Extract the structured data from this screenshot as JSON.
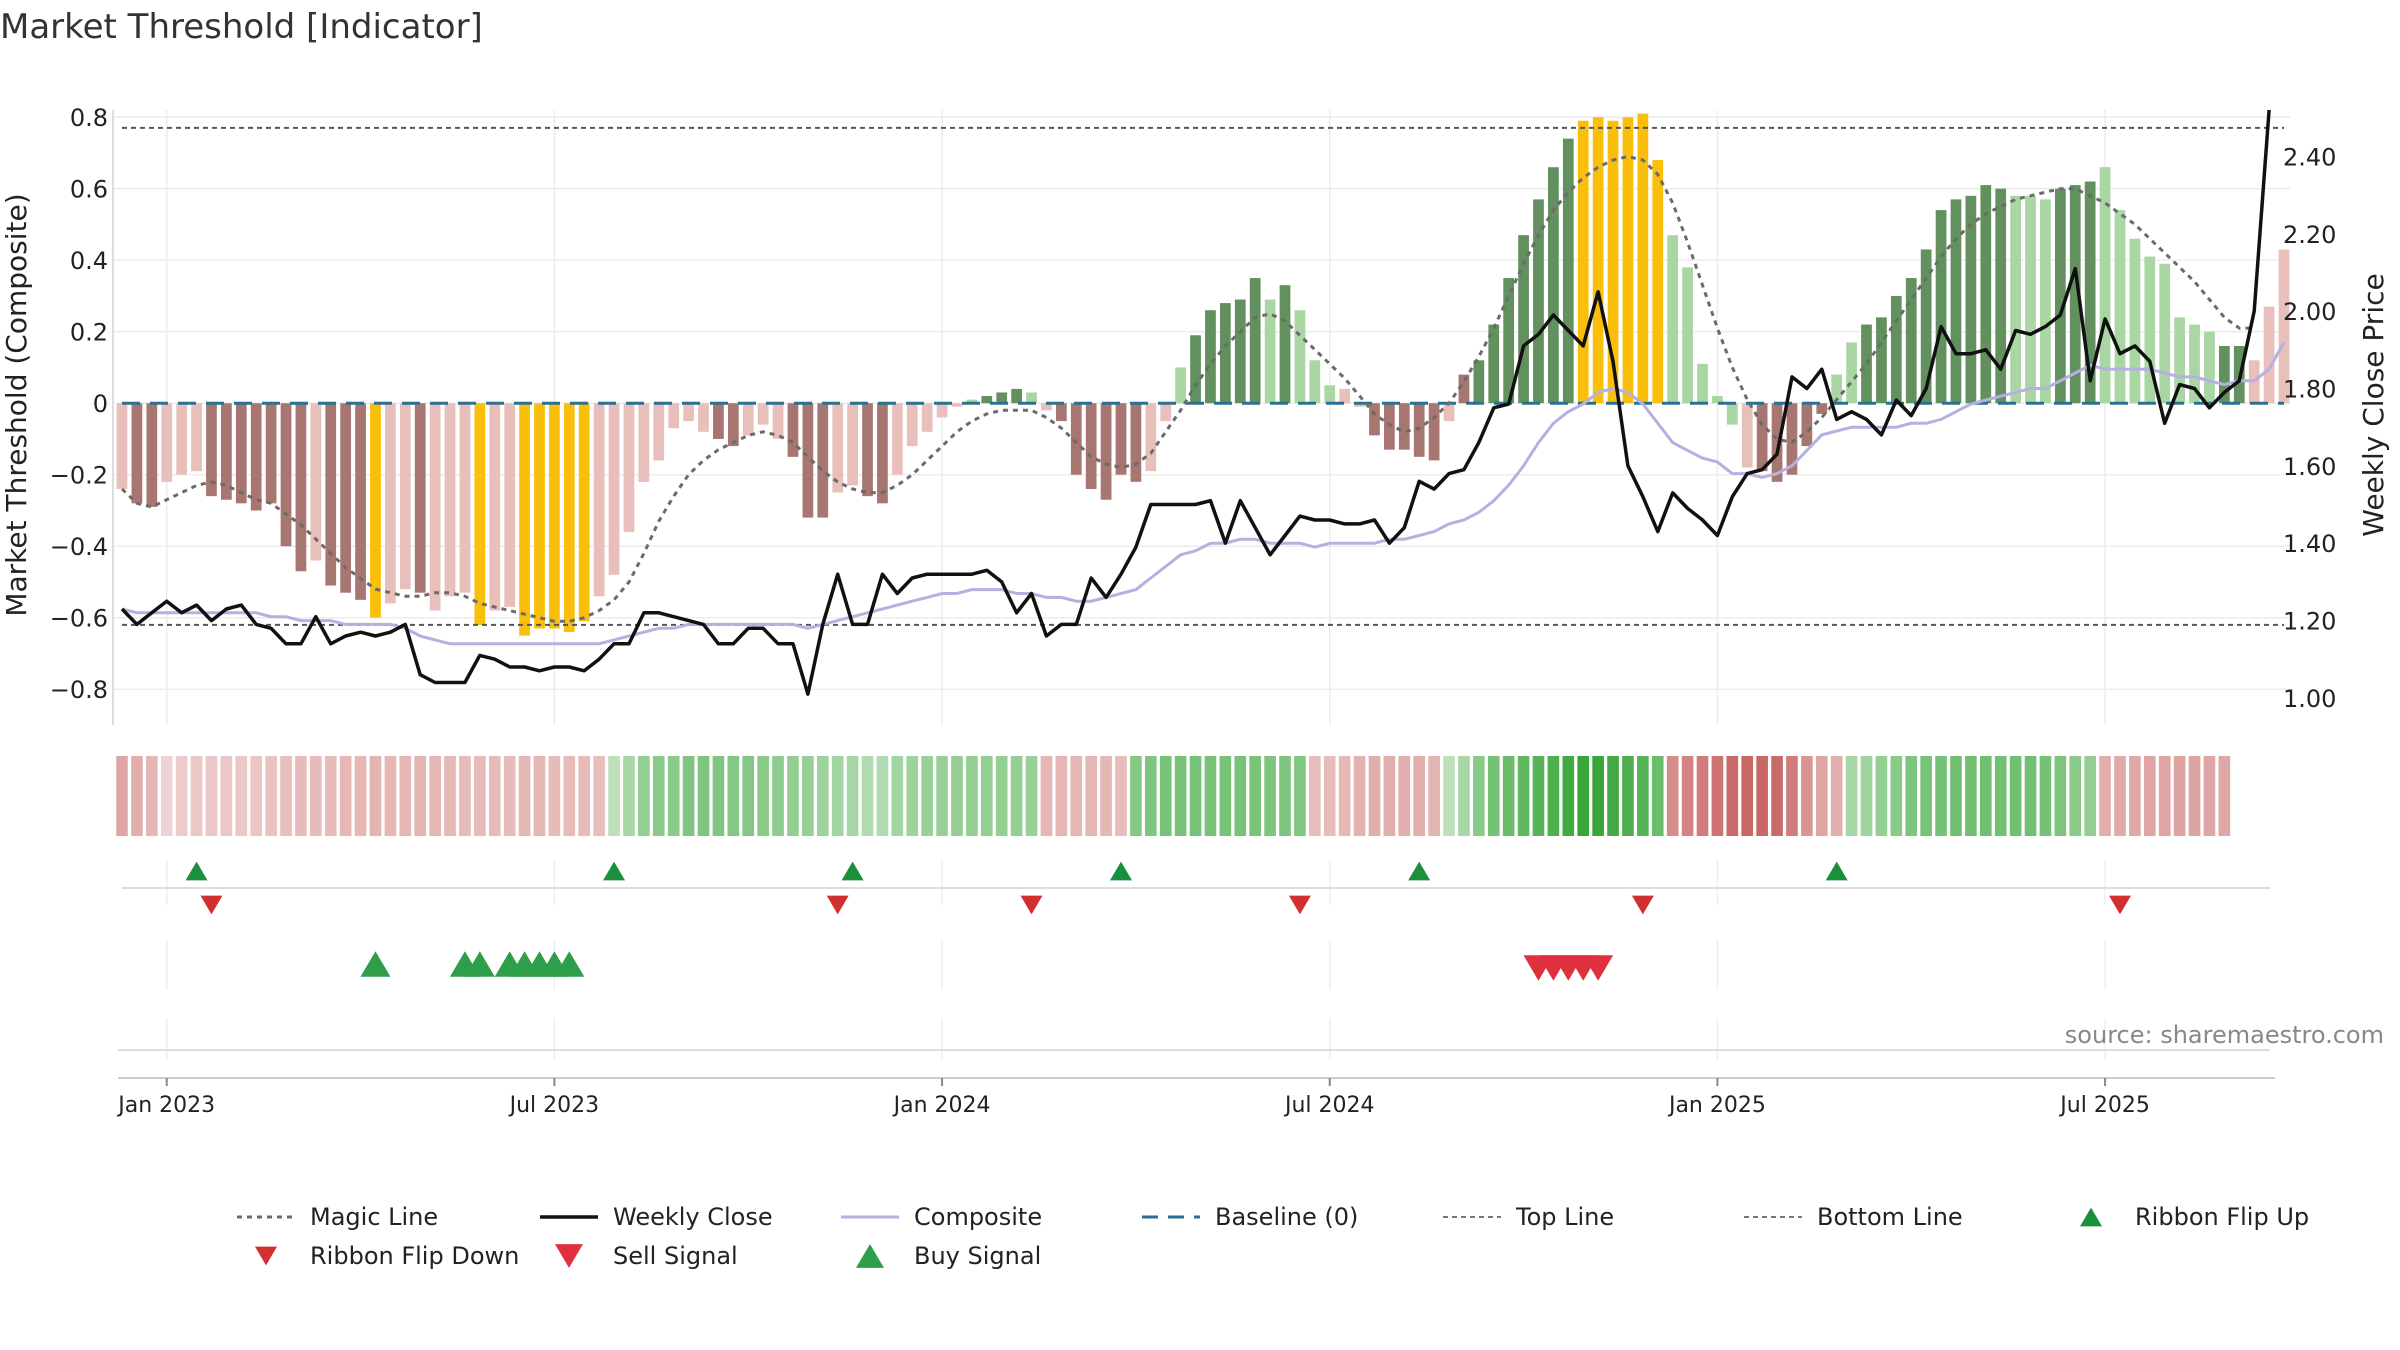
{
  "chart_data": {
    "type": "bar+line",
    "title": "Market Threshold [Indicator]",
    "ylabel_left": "Market Threshold (Composite)",
    "ylabel_right": "Weekly Close Price",
    "source": "source: sharemaestro.com",
    "ylim_left": [
      -0.9,
      0.82
    ],
    "ylim_right": [
      0.93,
      2.52
    ],
    "yticks_left": [
      {
        "v": 0.8,
        "label": "0.8"
      },
      {
        "v": 0.6,
        "label": "0.6"
      },
      {
        "v": 0.4,
        "label": "0.4"
      },
      {
        "v": 0.2,
        "label": "0.2"
      },
      {
        "v": 0,
        "label": "0"
      },
      {
        "v": -0.2,
        "label": "−0.2"
      },
      {
        "v": -0.4,
        "label": "−0.4"
      },
      {
        "v": -0.6,
        "label": "−0.6"
      },
      {
        "v": -0.8,
        "label": "−0.8"
      }
    ],
    "yticks_right": [
      {
        "v": 2.4,
        "label": "2.40"
      },
      {
        "v": 2.2,
        "label": "2.20"
      },
      {
        "v": 2.0,
        "label": "2.00"
      },
      {
        "v": 1.8,
        "label": "1.80"
      },
      {
        "v": 1.6,
        "label": "1.60"
      },
      {
        "v": 1.4,
        "label": "1.40"
      },
      {
        "v": 1.2,
        "label": "1.20"
      },
      {
        "v": 1.0,
        "label": "1.00"
      }
    ],
    "x_ticks": [
      {
        "i": 3,
        "label": "Jan 2023"
      },
      {
        "i": 29,
        "label": "Jul 2023"
      },
      {
        "i": 55,
        "label": "Jan 2024"
      },
      {
        "i": 81,
        "label": "Jul 2024"
      },
      {
        "i": 107,
        "label": "Jan 2025"
      },
      {
        "i": 133,
        "label": "Jul 2025"
      }
    ],
    "top_line": 0.77,
    "bottom_line": -0.62,
    "baseline": 0,
    "composite_bars": [
      -0.24,
      -0.28,
      -0.29,
      -0.22,
      -0.2,
      -0.19,
      -0.26,
      -0.27,
      -0.28,
      -0.3,
      -0.28,
      -0.4,
      -0.47,
      -0.44,
      -0.51,
      -0.53,
      -0.55,
      -0.6,
      -0.56,
      -0.52,
      -0.53,
      -0.58,
      -0.54,
      -0.53,
      -0.62,
      -0.58,
      -0.57,
      -0.65,
      -0.63,
      -0.63,
      -0.64,
      -0.61,
      -0.54,
      -0.48,
      -0.36,
      -0.22,
      -0.16,
      -0.07,
      -0.05,
      -0.08,
      -0.1,
      -0.12,
      -0.09,
      -0.06,
      -0.1,
      -0.15,
      -0.32,
      -0.32,
      -0.25,
      -0.23,
      -0.26,
      -0.28,
      -0.2,
      -0.12,
      -0.08,
      -0.04,
      -0.01,
      0.01,
      0.02,
      0.03,
      0.04,
      0.03,
      -0.02,
      -0.05,
      -0.2,
      -0.24,
      -0.27,
      -0.2,
      -0.22,
      -0.19,
      -0.05,
      0.1,
      0.19,
      0.26,
      0.28,
      0.29,
      0.35,
      0.29,
      0.33,
      0.26,
      0.12,
      0.05,
      0.04,
      -0.01,
      -0.09,
      -0.13,
      -0.13,
      -0.15,
      -0.16,
      -0.05,
      0.08,
      0.12,
      0.22,
      0.35,
      0.47,
      0.57,
      0.66,
      0.74,
      0.79,
      0.8,
      0.79,
      0.8,
      0.81,
      0.68,
      0.47,
      0.38,
      0.11,
      0.02,
      -0.06,
      -0.18,
      -0.19,
      -0.22,
      -0.2,
      -0.12,
      -0.03,
      0.08,
      0.17,
      0.22,
      0.24,
      0.3,
      0.35,
      0.43,
      0.54,
      0.57,
      0.58,
      0.61,
      0.6,
      0.58,
      0.58,
      0.57,
      0.6,
      0.61,
      0.62,
      0.66,
      0.54,
      0.46,
      0.41,
      0.39,
      0.24,
      0.22,
      0.2,
      0.16,
      0.16,
      0.12,
      0.27,
      0.43
    ],
    "bar_states": [
      "ld",
      "dd",
      "dd",
      "ld",
      "ld",
      "ld",
      "dd",
      "dd",
      "dd",
      "dd",
      "dd",
      "dd",
      "dd",
      "ld",
      "dd",
      "dd",
      "dd",
      "y",
      "ld",
      "ld",
      "dd",
      "ld",
      "ld",
      "ld",
      "y",
      "ld",
      "ld",
      "y",
      "y",
      "y",
      "y",
      "y",
      "ld",
      "ld",
      "ld",
      "ld",
      "ld",
      "ld",
      "ld",
      "ld",
      "dd",
      "dd",
      "ld",
      "ld",
      "ld",
      "dd",
      "dd",
      "dd",
      "ld",
      "ld",
      "dd",
      "dd",
      "ld",
      "ld",
      "ld",
      "ld",
      "ld",
      "lg",
      "dg",
      "dg",
      "dg",
      "lg",
      "ld",
      "dd",
      "dd",
      "dd",
      "dd",
      "dd",
      "dd",
      "ld",
      "ld",
      "lg",
      "dg",
      "dg",
      "dg",
      "dg",
      "dg",
      "lg",
      "dg",
      "lg",
      "lg",
      "lg",
      "ld",
      "ld",
      "dd",
      "dd",
      "dd",
      "dd",
      "dd",
      "ld",
      "dd",
      "dg",
      "dg",
      "dg",
      "dg",
      "dg",
      "dg",
      "dg",
      "y",
      "y",
      "y",
      "y",
      "y",
      "y",
      "lg",
      "lg",
      "lg",
      "lg",
      "lg",
      "ld",
      "dd",
      "dd",
      "dd",
      "dd",
      "dd",
      "lg",
      "lg",
      "dg",
      "dg",
      "dg",
      "dg",
      "dg",
      "dg",
      "dg",
      "dg",
      "dg",
      "dg",
      "lg",
      "lg",
      "lg",
      "dg",
      "dg",
      "dg",
      "lg",
      "lg",
      "lg",
      "lg",
      "lg",
      "lg",
      "lg",
      "lg",
      "dg",
      "dg"
    ],
    "magic_line": [
      -0.24,
      -0.28,
      -0.29,
      -0.27,
      -0.25,
      -0.23,
      -0.22,
      -0.23,
      -0.25,
      -0.27,
      -0.28,
      -0.31,
      -0.34,
      -0.38,
      -0.42,
      -0.46,
      -0.49,
      -0.52,
      -0.53,
      -0.54,
      -0.54,
      -0.53,
      -0.53,
      -0.54,
      -0.56,
      -0.57,
      -0.58,
      -0.59,
      -0.6,
      -0.61,
      -0.61,
      -0.6,
      -0.58,
      -0.55,
      -0.5,
      -0.42,
      -0.33,
      -0.26,
      -0.2,
      -0.16,
      -0.13,
      -0.11,
      -0.09,
      -0.08,
      -0.09,
      -0.11,
      -0.15,
      -0.19,
      -0.22,
      -0.24,
      -0.25,
      -0.25,
      -0.23,
      -0.2,
      -0.16,
      -0.12,
      -0.08,
      -0.05,
      -0.03,
      -0.02,
      -0.02,
      -0.02,
      -0.04,
      -0.07,
      -0.11,
      -0.15,
      -0.17,
      -0.18,
      -0.17,
      -0.14,
      -0.08,
      -0.02,
      0.05,
      0.11,
      0.16,
      0.2,
      0.24,
      0.25,
      0.23,
      0.19,
      0.15,
      0.11,
      0.07,
      0.02,
      -0.03,
      -0.06,
      -0.08,
      -0.07,
      -0.04,
      0.0,
      0.06,
      0.13,
      0.21,
      0.3,
      0.39,
      0.47,
      0.54,
      0.59,
      0.63,
      0.66,
      0.68,
      0.69,
      0.68,
      0.64,
      0.56,
      0.45,
      0.33,
      0.21,
      0.1,
      0.01,
      -0.06,
      -0.1,
      -0.11,
      -0.08,
      -0.04,
      0.01,
      0.06,
      0.11,
      0.17,
      0.23,
      0.29,
      0.35,
      0.41,
      0.46,
      0.5,
      0.53,
      0.55,
      0.57,
      0.58,
      0.59,
      0.6,
      0.6,
      0.58,
      0.56,
      0.53,
      0.5,
      0.46,
      0.42,
      0.38,
      0.34,
      0.29,
      0.24,
      0.21,
      0.21
    ],
    "weekly_close": [
      1.23,
      1.19,
      1.22,
      1.25,
      1.22,
      1.24,
      1.2,
      1.23,
      1.24,
      1.19,
      1.18,
      1.14,
      1.14,
      1.21,
      1.14,
      1.16,
      1.17,
      1.16,
      1.17,
      1.19,
      1.06,
      1.04,
      1.04,
      1.04,
      1.11,
      1.1,
      1.08,
      1.08,
      1.07,
      1.08,
      1.08,
      1.07,
      1.1,
      1.14,
      1.14,
      1.22,
      1.22,
      1.21,
      1.2,
      1.19,
      1.14,
      1.14,
      1.18,
      1.18,
      1.14,
      1.14,
      1.01,
      1.19,
      1.32,
      1.19,
      1.19,
      1.32,
      1.27,
      1.31,
      1.32,
      1.32,
      1.32,
      1.32,
      1.33,
      1.3,
      1.22,
      1.27,
      1.16,
      1.19,
      1.19,
      1.31,
      1.26,
      1.32,
      1.39,
      1.5,
      1.5,
      1.5,
      1.5,
      1.51,
      1.4,
      1.51,
      1.44,
      1.37,
      1.42,
      1.47,
      1.46,
      1.46,
      1.45,
      1.45,
      1.46,
      1.4,
      1.44,
      1.56,
      1.54,
      1.58,
      1.59,
      1.66,
      1.75,
      1.76,
      1.91,
      1.94,
      1.99,
      1.95,
      1.91,
      2.05,
      1.87,
      1.6,
      1.52,
      1.43,
      1.53,
      1.49,
      1.46,
      1.42,
      1.52,
      1.58,
      1.59,
      1.63,
      1.83,
      1.8,
      1.85,
      1.72,
      1.74,
      1.72,
      1.68,
      1.77,
      1.73,
      1.8,
      1.96,
      1.89,
      1.89,
      1.9,
      1.85,
      1.95,
      1.94,
      1.96,
      1.99,
      2.11,
      1.82,
      1.98,
      1.89,
      1.91,
      1.87,
      1.71,
      1.81,
      1.8,
      1.75,
      1.79,
      1.82,
      2.0,
      2.52
    ],
    "composite_line": [
      1.23,
      1.22,
      1.22,
      1.22,
      1.22,
      1.22,
      1.22,
      1.22,
      1.22,
      1.22,
      1.21,
      1.21,
      1.2,
      1.2,
      1.2,
      1.19,
      1.19,
      1.19,
      1.19,
      1.18,
      1.16,
      1.15,
      1.14,
      1.14,
      1.14,
      1.14,
      1.14,
      1.14,
      1.14,
      1.14,
      1.14,
      1.14,
      1.14,
      1.15,
      1.16,
      1.17,
      1.18,
      1.18,
      1.19,
      1.19,
      1.19,
      1.19,
      1.19,
      1.19,
      1.19,
      1.19,
      1.18,
      1.19,
      1.2,
      1.21,
      1.22,
      1.23,
      1.24,
      1.25,
      1.26,
      1.27,
      1.27,
      1.28,
      1.28,
      1.28,
      1.27,
      1.27,
      1.26,
      1.26,
      1.25,
      1.25,
      1.26,
      1.27,
      1.28,
      1.31,
      1.34,
      1.37,
      1.38,
      1.4,
      1.4,
      1.41,
      1.41,
      1.4,
      1.4,
      1.4,
      1.39,
      1.4,
      1.4,
      1.4,
      1.4,
      1.41,
      1.41,
      1.42,
      1.43,
      1.45,
      1.46,
      1.48,
      1.51,
      1.55,
      1.6,
      1.66,
      1.71,
      1.74,
      1.76,
      1.79,
      1.8,
      1.79,
      1.76,
      1.71,
      1.66,
      1.64,
      1.62,
      1.61,
      1.58,
      1.58,
      1.57,
      1.58,
      1.6,
      1.64,
      1.68,
      1.69,
      1.7,
      1.7,
      1.7,
      1.7,
      1.71,
      1.71,
      1.72,
      1.74,
      1.76,
      1.77,
      1.78,
      1.79,
      1.8,
      1.8,
      1.82,
      1.84,
      1.86,
      1.85,
      1.85,
      1.85,
      1.85,
      1.84,
      1.83,
      1.83,
      1.82,
      1.81,
      1.82,
      1.82,
      1.85,
      1.92
    ],
    "ribbon": [
      -0.35,
      -0.3,
      -0.25,
      -0.08,
      -0.12,
      -0.15,
      -0.14,
      -0.14,
      -0.15,
      -0.16,
      -0.18,
      -0.2,
      -0.22,
      -0.22,
      -0.22,
      -0.24,
      -0.24,
      -0.26,
      -0.24,
      -0.24,
      -0.26,
      -0.24,
      -0.24,
      -0.22,
      -0.22,
      -0.22,
      -0.22,
      -0.24,
      -0.24,
      -0.22,
      -0.22,
      -0.22,
      -0.2,
      0.15,
      0.25,
      0.35,
      0.4,
      0.4,
      0.45,
      0.45,
      0.45,
      0.42,
      0.42,
      0.4,
      0.38,
      0.35,
      0.33,
      0.3,
      0.28,
      0.25,
      0.2,
      0.2,
      0.28,
      0.3,
      0.32,
      0.33,
      0.34,
      0.35,
      0.35,
      0.35,
      0.35,
      0.33,
      -0.25,
      -0.25,
      -0.25,
      -0.24,
      -0.24,
      -0.22,
      0.42,
      0.45,
      0.48,
      0.48,
      0.48,
      0.48,
      0.48,
      0.48,
      0.48,
      0.46,
      0.45,
      0.44,
      -0.2,
      -0.22,
      -0.24,
      -0.28,
      -0.3,
      -0.3,
      -0.3,
      -0.3,
      -0.26,
      0.15,
      0.25,
      0.4,
      0.5,
      0.55,
      0.6,
      0.65,
      0.7,
      0.75,
      0.8,
      0.8,
      0.75,
      0.7,
      0.65,
      0.55,
      -0.5,
      -0.55,
      -0.6,
      -0.65,
      -0.7,
      -0.72,
      -0.72,
      -0.7,
      -0.6,
      -0.45,
      -0.35,
      -0.3,
      0.25,
      0.3,
      0.35,
      0.4,
      0.45,
      0.48,
      0.5,
      0.52,
      0.52,
      0.52,
      0.52,
      0.52,
      0.52,
      0.5,
      0.45,
      0.4,
      0.35,
      -0.3,
      -0.32,
      -0.34,
      -0.35,
      -0.35,
      -0.36,
      -0.36,
      -0.35,
      -0.34
    ],
    "ribbon_flip_up": [
      5,
      33,
      49,
      67,
      87,
      115
    ],
    "ribbon_flip_down": [
      6,
      48,
      61,
      79,
      102,
      134
    ],
    "buy_signals": [
      17,
      23,
      24,
      26,
      27,
      28,
      29,
      30
    ],
    "sell_signals": [
      95,
      96,
      97,
      98,
      99
    ],
    "legend": [
      {
        "label": "Magic Line",
        "kind": "dotted"
      },
      {
        "label": "Weekly Close",
        "kind": "solid"
      },
      {
        "label": "Composite",
        "kind": "composite"
      },
      {
        "label": "Baseline (0)",
        "kind": "dashed"
      },
      {
        "label": "Top Line",
        "kind": "thindotted"
      },
      {
        "label": "Bottom Line",
        "kind": "thindotted"
      },
      {
        "label": "Ribbon Flip Up",
        "kind": "tri-up-green"
      },
      {
        "label": "Ribbon Flip Down",
        "kind": "tri-down-red"
      },
      {
        "label": "Sell Signal",
        "kind": "tri-down-red2"
      },
      {
        "label": "Buy Signal",
        "kind": "tri-up-green2"
      }
    ]
  },
  "colors": {
    "dark_red": "#a87670",
    "light_red": "#e9bfbb",
    "dark_green": "#63905f",
    "light_green": "#a9d6a3",
    "yellow": "#f9bf0a",
    "close": "#111111",
    "composite": "#b6b0e0",
    "magic": "#6b6b6b",
    "baseline": "#2a7190",
    "ribbon_red": "#c0504d",
    "ribbon_green": "#2ca02c",
    "flip_up": "#1a8f3c",
    "flip_down": "#d03030",
    "sell": "#e03040",
    "buy": "#2e9e4a"
  }
}
